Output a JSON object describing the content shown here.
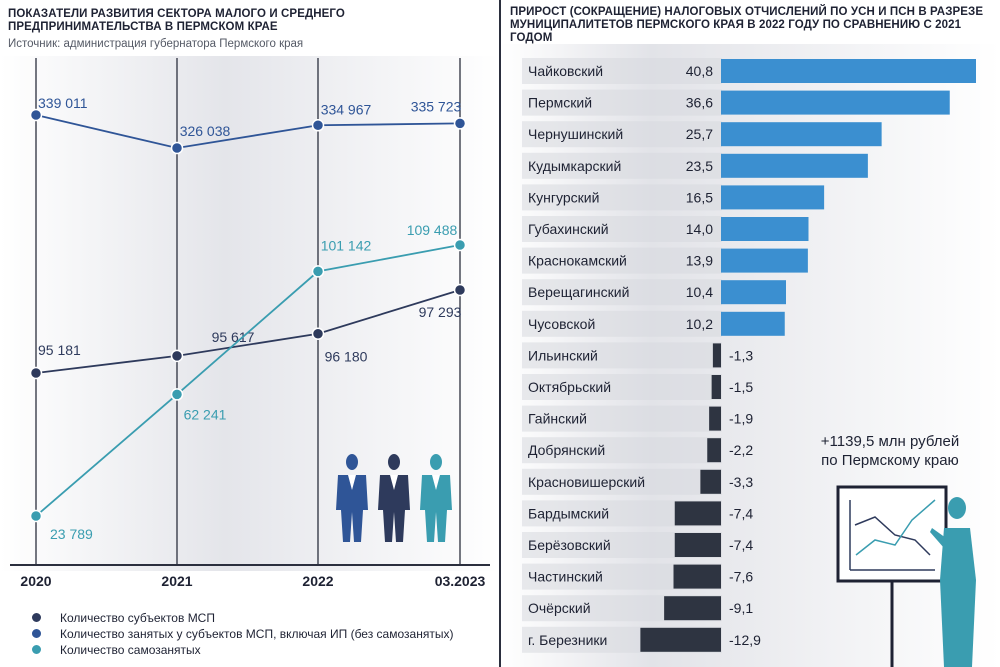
{
  "left": {
    "title": "ПОКАЗАТЕЛИ РАЗВИТИЯ СЕКТОРА МАЛОГО И СРЕДНЕГО ПРЕДПРИНИМАТЕЛЬСТВА В ПЕРМСКОМ КРАЕ",
    "subtitle": "Источник: администрация губернатора Пермского края",
    "legend": [
      {
        "label": "Количество субъектов МСП",
        "color": "#2e3a5c"
      },
      {
        "label": "Количество занятых у субъектов МСП, включая ИП (без самозанятых)",
        "color": "#2f5597"
      },
      {
        "label": "Количество самозанятых",
        "color": "#3a9db0"
      }
    ]
  },
  "right": {
    "title": "ПРИРОСТ (СОКРАЩЕНИЕ) НАЛОГОВЫХ ОТЧИСЛЕНИЙ ПО УСН И ПСН В РАЗРЕЗЕ МУНИЦИПАЛИТЕТОВ ПЕРМСКОГО КРАЯ В 2022 ГОДУ ПО СРАВНЕНИЮ С 2021 ГОДОМ",
    "summary_line1": "+1139,5 млн рублей",
    "summary_line2": "по Пермскому краю"
  },
  "colors": {
    "positive_bar": "#3b8fd0",
    "negative_bar": "#2e3441",
    "msp": "#2e3a5c",
    "employed": "#2f5597",
    "selfemployed": "#3a9db0"
  },
  "chart_data": [
    {
      "type": "line",
      "title": "ПОКАЗАТЕЛИ РАЗВИТИЯ СЕКТОРА МАЛОГО И СРЕДНЕГО ПРЕДПРИНИМАТЕЛЬСТВА В ПЕРМСКОМ КРАЕ",
      "x": [
        "2020",
        "2021",
        "2022",
        "03.2023"
      ],
      "series": [
        {
          "name": "Количество занятых у субъектов МСП, включая ИП (без самозанятых)",
          "key": "employed",
          "values": [
            339011,
            326038,
            334967,
            335723
          ],
          "labels": [
            "339 011",
            "326 038",
            "334 967",
            "335 723"
          ]
        },
        {
          "name": "Количество субъектов МСП",
          "key": "msp",
          "values": [
            95181,
            95617,
            96180,
            97293
          ],
          "labels": [
            "95 181",
            "95 617",
            "96 180",
            "97 293"
          ]
        },
        {
          "name": "Количество самозанятых",
          "key": "selfemployed",
          "values": [
            23789,
            62241,
            101142,
            109488
          ],
          "labels": [
            "23 789",
            "62 241",
            "101 142",
            "109 488"
          ]
        }
      ],
      "grid": "vertical"
    },
    {
      "type": "bar",
      "orientation": "horizontal",
      "title": "ПРИРОСТ (СОКРАЩЕНИЕ) НАЛОГОВЫХ ОТЧИСЛЕНИЙ ПО УСН И ПСН В РАЗРЕЗЕ МУНИЦИПАЛИТЕТОВ ПЕРМСКОГО КРАЯ В 2022 ГОДУ ПО СРАВНЕНИЮ С 2021 ГОДОМ",
      "categories": [
        "Чайковский",
        "Пермский",
        "Чернушинский",
        "Кудымкарский",
        "Кунгурский",
        "Губахинский",
        "Краснокамский",
        "Верещагинский",
        "Чусовской",
        "Ильинский",
        "Октябрьский",
        "Гайнский",
        "Добрянский",
        "Красновишерский",
        "Бардымский",
        "Берёзовский",
        "Частинский",
        "Очёрский",
        "г. Березники"
      ],
      "values": [
        40.8,
        36.6,
        25.7,
        23.5,
        16.5,
        14.0,
        13.9,
        10.4,
        10.2,
        -1.3,
        -1.5,
        -1.9,
        -2.2,
        -3.3,
        -7.4,
        -7.4,
        -7.6,
        -9.1,
        -12.9
      ],
      "labels": [
        "40,8",
        "36,6",
        "25,7",
        "23,5",
        "16,5",
        "14,0",
        "13,9",
        "10,4",
        "10,2",
        "-1,3",
        "-1,5",
        "-1,9",
        "-2,2",
        "-3,3",
        "-7,4",
        "-7,4",
        "-7,6",
        "-9,1",
        "-12,9"
      ]
    }
  ]
}
